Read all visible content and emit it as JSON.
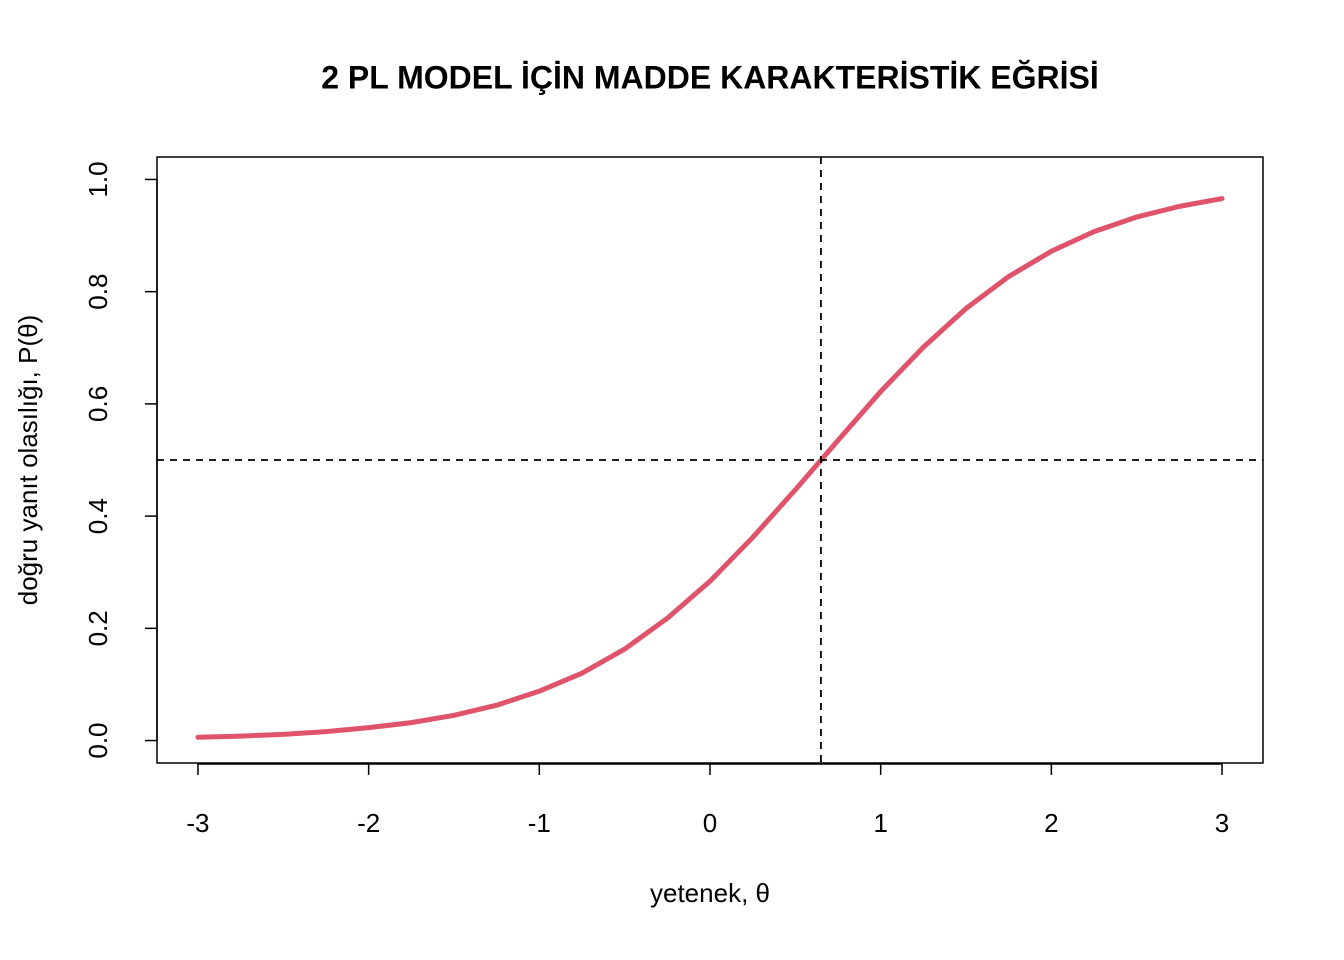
{
  "chart_data": {
    "type": "line",
    "title": "2 PL MODEL İÇİN MADDE KARAKTERİSTİK EĞRİSİ",
    "x_label": "yetenek, θ",
    "y_label": "doğru yanıt olasılığı, P(θ)",
    "x": [
      -3,
      -2.75,
      -2.5,
      -2.25,
      -2,
      -1.75,
      -1.5,
      -1.25,
      -1,
      -0.75,
      -0.5,
      -0.25,
      0,
      0.25,
      0.5,
      0.75,
      1,
      1.25,
      1.5,
      1.75,
      2,
      2.25,
      2.5,
      2.75,
      3
    ],
    "values": [
      0.006,
      0.008,
      0.011,
      0.016,
      0.023,
      0.032,
      0.045,
      0.063,
      0.088,
      0.12,
      0.163,
      0.218,
      0.284,
      0.362,
      0.447,
      0.535,
      0.622,
      0.701,
      0.77,
      0.827,
      0.872,
      0.907,
      0.933,
      0.952,
      0.966
    ],
    "color": "#df536b",
    "vline": 0.65,
    "hline": 0.5,
    "xlim": [
      -3.24,
      3.24
    ],
    "ylim": [
      -0.04,
      1.04
    ],
    "xticks": [
      -3,
      -2,
      -1,
      0,
      1,
      2,
      3
    ],
    "yticks": [
      {
        "value": 0,
        "label": "0.0"
      },
      0.2,
      0.4,
      0.6,
      0.8,
      {
        "value": 1,
        "label": "1.0"
      }
    ]
  }
}
